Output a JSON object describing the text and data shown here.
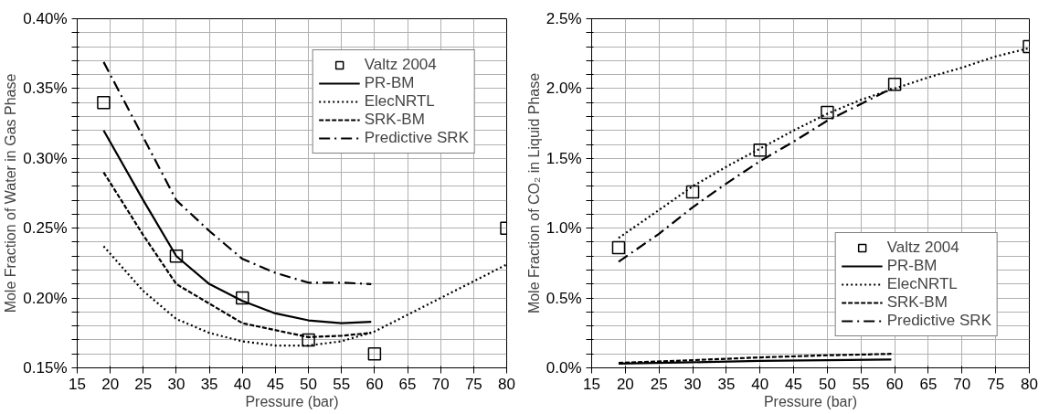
{
  "chart_data": [
    {
      "type": "line",
      "xlabel": "Pressure (bar)",
      "ylabel": "Mole Fraction of Water in Gas Phase",
      "xlim": [
        15,
        80
      ],
      "ylim": [
        0.15,
        0.4
      ],
      "xticks": [
        15,
        20,
        25,
        30,
        35,
        40,
        45,
        50,
        55,
        60,
        65,
        70,
        75,
        80
      ],
      "yticks": [
        {
          "value": 0.15,
          "label": "0.15%"
        },
        {
          "value": 0.16,
          "label": null
        },
        {
          "value": 0.17,
          "label": null
        },
        {
          "value": 0.18,
          "label": null
        },
        {
          "value": 0.19,
          "label": null
        },
        {
          "value": 0.2,
          "label": "0.20%"
        },
        {
          "value": 0.21,
          "label": null
        },
        {
          "value": 0.22,
          "label": null
        },
        {
          "value": 0.23,
          "label": null
        },
        {
          "value": 0.24,
          "label": null
        },
        {
          "value": 0.25,
          "label": "0.25%"
        },
        {
          "value": 0.26,
          "label": null
        },
        {
          "value": 0.27,
          "label": null
        },
        {
          "value": 0.28,
          "label": null
        },
        {
          "value": 0.29,
          "label": null
        },
        {
          "value": 0.3,
          "label": "0.30%"
        },
        {
          "value": 0.31,
          "label": null
        },
        {
          "value": 0.32,
          "label": null
        },
        {
          "value": 0.33,
          "label": null
        },
        {
          "value": 0.34,
          "label": null
        },
        {
          "value": 0.35,
          "label": "0.35%"
        },
        {
          "value": 0.36,
          "label": null
        },
        {
          "value": 0.37,
          "label": null
        },
        {
          "value": 0.38,
          "label": null
        },
        {
          "value": 0.39,
          "label": null
        },
        {
          "value": 0.4,
          "label": "0.40%"
        }
      ],
      "grid": true,
      "legend": "top right",
      "series": [
        {
          "name": "Valtz 2004",
          "type": "scatter",
          "marker": "square",
          "color": "#000000",
          "x": [
            19,
            30,
            40,
            50,
            60,
            80
          ],
          "values": [
            0.34,
            0.23,
            0.2,
            0.17,
            0.16,
            0.25
          ]
        },
        {
          "name": "PR-BM",
          "line_style": "solid",
          "color": "#000000",
          "x": [
            19,
            25,
            30,
            35,
            40,
            45,
            50,
            55,
            59.5
          ],
          "values": [
            0.32,
            0.27,
            0.23,
            0.21,
            0.198,
            0.189,
            0.184,
            0.182,
            0.183
          ]
        },
        {
          "name": "ElecNRTL",
          "line_style": "dotted",
          "color": "#000000",
          "x": [
            19,
            25,
            30,
            35,
            40,
            45,
            50,
            55,
            60,
            65,
            70,
            75,
            80
          ],
          "values": [
            0.237,
            0.205,
            0.185,
            0.175,
            0.169,
            0.166,
            0.166,
            0.169,
            0.176,
            0.188,
            0.2,
            0.212,
            0.224
          ]
        },
        {
          "name": "SRK-BM",
          "line_style": "dashed",
          "color": "#000000",
          "x": [
            19,
            25,
            30,
            35,
            40,
            45,
            50,
            55,
            59.5
          ],
          "values": [
            0.29,
            0.245,
            0.21,
            0.196,
            0.182,
            0.177,
            0.172,
            0.173,
            0.175
          ]
        },
        {
          "name": "Predictive SRK",
          "line_style": "dashdot",
          "color": "#000000",
          "x": [
            19,
            25,
            30,
            35,
            40,
            45,
            50,
            55,
            59.5
          ],
          "values": [
            0.369,
            0.315,
            0.27,
            0.248,
            0.228,
            0.218,
            0.211,
            0.211,
            0.21
          ]
        }
      ]
    },
    {
      "type": "line",
      "xlabel": "Pressure (bar)",
      "ylabel": "Mole Fraction of CO₂ in Liquid Phase",
      "xlim": [
        15,
        80
      ],
      "ylim": [
        0.0,
        2.5
      ],
      "xticks": [
        15,
        20,
        25,
        30,
        35,
        40,
        45,
        50,
        55,
        60,
        65,
        70,
        75,
        80
      ],
      "yticks": [
        {
          "value": 0.0,
          "label": "0.0%"
        },
        {
          "value": 0.1,
          "label": null
        },
        {
          "value": 0.2,
          "label": null
        },
        {
          "value": 0.3,
          "label": null
        },
        {
          "value": 0.4,
          "label": null
        },
        {
          "value": 0.5,
          "label": "0.5%"
        },
        {
          "value": 0.6,
          "label": null
        },
        {
          "value": 0.7,
          "label": null
        },
        {
          "value": 0.8,
          "label": null
        },
        {
          "value": 0.9,
          "label": null
        },
        {
          "value": 1.0,
          "label": "1.0%"
        },
        {
          "value": 1.1,
          "label": null
        },
        {
          "value": 1.2,
          "label": null
        },
        {
          "value": 1.3,
          "label": null
        },
        {
          "value": 1.4,
          "label": null
        },
        {
          "value": 1.5,
          "label": "1.5%"
        },
        {
          "value": 1.6,
          "label": null
        },
        {
          "value": 1.7,
          "label": null
        },
        {
          "value": 1.8,
          "label": null
        },
        {
          "value": 1.9,
          "label": null
        },
        {
          "value": 2.0,
          "label": "2.0%"
        },
        {
          "value": 2.1,
          "label": null
        },
        {
          "value": 2.2,
          "label": null
        },
        {
          "value": 2.3,
          "label": null
        },
        {
          "value": 2.4,
          "label": null
        },
        {
          "value": 2.5,
          "label": "2.5%"
        }
      ],
      "grid": true,
      "legend": "bottom right",
      "series": [
        {
          "name": "Valtz 2004",
          "type": "scatter",
          "marker": "square",
          "color": "#000000",
          "x": [
            19,
            30,
            40,
            50,
            60,
            80
          ],
          "values": [
            0.86,
            1.26,
            1.56,
            1.83,
            2.03,
            2.3
          ]
        },
        {
          "name": "PR-BM",
          "line_style": "solid",
          "color": "#000000",
          "x": [
            19,
            30,
            40,
            50,
            59.5
          ],
          "values": [
            0.03,
            0.04,
            0.05,
            0.055,
            0.06
          ]
        },
        {
          "name": "ElecNRTL",
          "line_style": "dotted",
          "color": "#000000",
          "x": [
            19,
            25,
            30,
            35,
            40,
            45,
            50,
            55,
            60,
            65,
            70,
            75,
            80
          ],
          "values": [
            0.93,
            1.13,
            1.3,
            1.44,
            1.57,
            1.7,
            1.82,
            1.92,
            2.0,
            2.08,
            2.15,
            2.23,
            2.29
          ]
        },
        {
          "name": "SRK-BM",
          "line_style": "dashed",
          "color": "#000000",
          "x": [
            19,
            30,
            40,
            50,
            59.5
          ],
          "values": [
            0.035,
            0.055,
            0.075,
            0.09,
            0.1
          ]
        },
        {
          "name": "Predictive SRK",
          "line_style": "dashdot",
          "color": "#000000",
          "x": [
            19,
            25,
            30,
            35,
            40,
            45,
            50,
            55,
            59.5
          ],
          "values": [
            0.76,
            0.96,
            1.15,
            1.32,
            1.48,
            1.62,
            1.77,
            1.89,
            2.0
          ]
        }
      ]
    }
  ]
}
